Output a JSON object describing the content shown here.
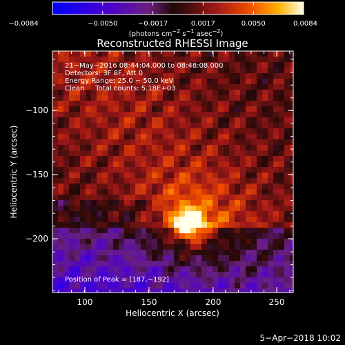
{
  "colorbar": {
    "ticks": [
      "−0.0084",
      "−0.0050",
      "−0.0017",
      "0.0017",
      "0.0050",
      "0.0084"
    ],
    "units_prefix": "(photons cm",
    "units_exp1": "−2",
    "units_mid": " s",
    "units_exp2": "−1",
    "units_mid2": " asec",
    "units_exp3": "−2",
    "units_suffix": ")"
  },
  "image": {
    "title": "Reconstructed RHESSI Image",
    "xlabel": "Heliocentric X (arcsec)",
    "ylabel": "Heliocentric Y (arcsec)",
    "x_ticks": [
      "100",
      "150",
      "200",
      "250"
    ],
    "y_ticks": [
      "−100",
      "−150",
      "−200"
    ],
    "annotation_lines": [
      "21−May−2016 08:44:04.000 to 08:48:08.000",
      "Detectors: 3F 8F, Att 0",
      "Energy Range: 25.0 − 50.0 keV",
      "Clean     Total counts: 5.18E+03"
    ],
    "peak_position": "Position of Peak = [187,−192]"
  },
  "footer": {
    "timestamp": "5−Apr−2018 10:02"
  }
}
